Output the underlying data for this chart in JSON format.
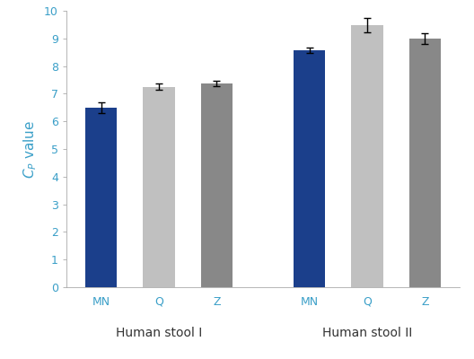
{
  "bars": [
    {
      "label": "MN",
      "group": "Human stool I",
      "value": 6.5,
      "error": 0.2,
      "color": "#1b3f8b"
    },
    {
      "label": "Q",
      "group": "Human stool I",
      "value": 7.25,
      "error": 0.12,
      "color": "#c0c0c0"
    },
    {
      "label": "Z",
      "group": "Human stool I",
      "value": 7.38,
      "error": 0.1,
      "color": "#888888"
    },
    {
      "label": "MN",
      "group": "Human stool II",
      "value": 8.57,
      "error": 0.1,
      "color": "#1b3f8b"
    },
    {
      "label": "Q",
      "group": "Human stool II",
      "value": 9.48,
      "error": 0.25,
      "color": "#c0c0c0"
    },
    {
      "label": "Z",
      "group": "Human stool II",
      "value": 9.0,
      "error": 0.2,
      "color": "#888888"
    }
  ],
  "ylabel": "$C_P$ value",
  "ylim": [
    0,
    10
  ],
  "yticks": [
    0,
    1,
    2,
    3,
    4,
    5,
    6,
    7,
    8,
    9,
    10
  ],
  "group_labels": [
    "Human stool I",
    "Human stool II"
  ],
  "bar_width": 0.55,
  "tick_label_color": "#3a9fc8",
  "axis_label_color": "#555555",
  "group_label_color": "#333333",
  "background_color": "#ffffff",
  "ylabel_fontsize": 11,
  "group_label_fontsize": 10,
  "bar_tick_fontsize": 9,
  "ytick_fontsize": 9,
  "ytick_color": "#3a9fc8"
}
